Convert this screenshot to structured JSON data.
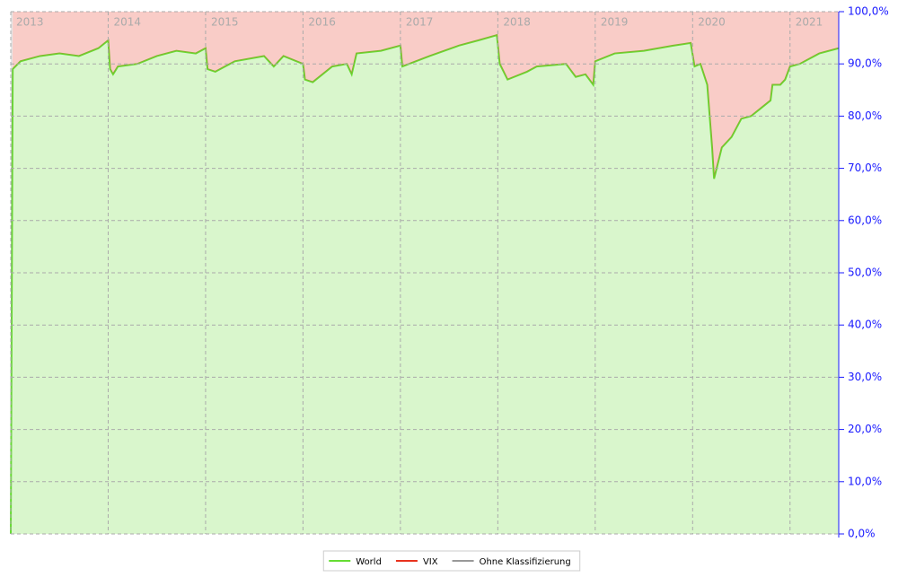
{
  "chart_data": {
    "type": "stacked-area",
    "x": [
      2013.0,
      2013.02,
      2013.1,
      2013.3,
      2013.5,
      2013.7,
      2013.9,
      2014.0,
      2014.02,
      2014.05,
      2014.1,
      2014.3,
      2014.5,
      2014.7,
      2014.9,
      2015.0,
      2015.02,
      2015.1,
      2015.3,
      2015.6,
      2015.7,
      2015.8,
      2016.0,
      2016.02,
      2016.1,
      2016.3,
      2016.45,
      2016.5,
      2016.55,
      2016.8,
      2017.0,
      2017.02,
      2017.3,
      2017.6,
      2017.8,
      2017.99,
      2018.02,
      2018.1,
      2018.3,
      2018.4,
      2018.7,
      2018.8,
      2018.9,
      2018.98,
      2019.0,
      2019.2,
      2019.5,
      2019.8,
      2019.98,
      2020.02,
      2020.08,
      2020.15,
      2020.2,
      2020.22,
      2020.3,
      2020.4,
      2020.5,
      2020.6,
      2020.7,
      2020.8,
      2020.82,
      2020.9,
      2020.95,
      2021.0,
      2021.1,
      2021.3,
      2021.5
    ],
    "series": [
      {
        "name": "World",
        "color": "#66dd33",
        "values": [
          0,
          89,
          90.5,
          91.5,
          92,
          91.5,
          93,
          94.5,
          89,
          88,
          89.5,
          90,
          91.5,
          92.5,
          92,
          93,
          89,
          88.5,
          90.5,
          91.5,
          89.5,
          91.5,
          90,
          87,
          86.5,
          89.5,
          90,
          88,
          92,
          92.5,
          93.5,
          89.5,
          91.5,
          93.5,
          94.5,
          95.5,
          90,
          87,
          88.5,
          89.5,
          90,
          87.5,
          88,
          86,
          90.5,
          92,
          92.5,
          93.5,
          94,
          89.5,
          90,
          86,
          74,
          68,
          74,
          76,
          79.5,
          80,
          81.5,
          83,
          86,
          86,
          87,
          89.5,
          90,
          92,
          93
        ]
      },
      {
        "name": "VIX",
        "color": "#e8321e",
        "values": [
          0,
          11,
          9.5,
          8.5,
          8,
          8.5,
          7,
          5.5,
          11,
          12,
          10.5,
          10,
          8.5,
          7.5,
          8,
          7,
          11,
          11.5,
          9.5,
          8.5,
          10.5,
          8.5,
          10,
          13,
          13.5,
          10.5,
          10,
          12,
          8,
          7.5,
          6.5,
          10.5,
          8.5,
          6.5,
          5.5,
          4.5,
          10,
          13,
          11.5,
          10.5,
          10,
          12.5,
          12,
          14,
          9.5,
          8,
          7.5,
          6.5,
          6,
          10.5,
          10,
          14,
          26,
          32,
          26,
          24,
          20.5,
          20,
          18.5,
          17,
          14,
          14,
          13,
          10.5,
          10,
          8,
          7
        ]
      },
      {
        "name": "Ohne Klassifizierung",
        "color": "#999999",
        "values": [
          100,
          0,
          0,
          0,
          0,
          0,
          0,
          0,
          0,
          0,
          0,
          0,
          0,
          0,
          0,
          0,
          0,
          0,
          0,
          0,
          0,
          0,
          0,
          0,
          0,
          0,
          0,
          0,
          0,
          0,
          0,
          0,
          0,
          0,
          0,
          0,
          0,
          0,
          0,
          0,
          0,
          0,
          0,
          0,
          0,
          0,
          0,
          0,
          0,
          0,
          0,
          0,
          0,
          0,
          0,
          0,
          0,
          0,
          0,
          0,
          0,
          0,
          0,
          0,
          0,
          0,
          0
        ]
      }
    ],
    "xlim": [
      2013,
      2021.5
    ],
    "xticks": [
      2013,
      2014,
      2015,
      2016,
      2017,
      2018,
      2019,
      2020,
      2021
    ],
    "ylim": [
      0,
      100
    ],
    "yticks": [
      {
        "value": 0,
        "label": "0,0%"
      },
      {
        "value": 10,
        "label": "10,0%"
      },
      {
        "value": 20,
        "label": "20,0%"
      },
      {
        "value": 30,
        "label": "30,0%"
      },
      {
        "value": 40,
        "label": "40,0%"
      },
      {
        "value": 50,
        "label": "50,0%"
      },
      {
        "value": 60,
        "label": "60,0%"
      },
      {
        "value": 70,
        "label": "70,0%"
      },
      {
        "value": 80,
        "label": "80,0%"
      },
      {
        "value": 90,
        "label": "90,0%"
      },
      {
        "value": 100,
        "label": "100,0%"
      }
    ],
    "grid": true,
    "legend": "bottom"
  }
}
